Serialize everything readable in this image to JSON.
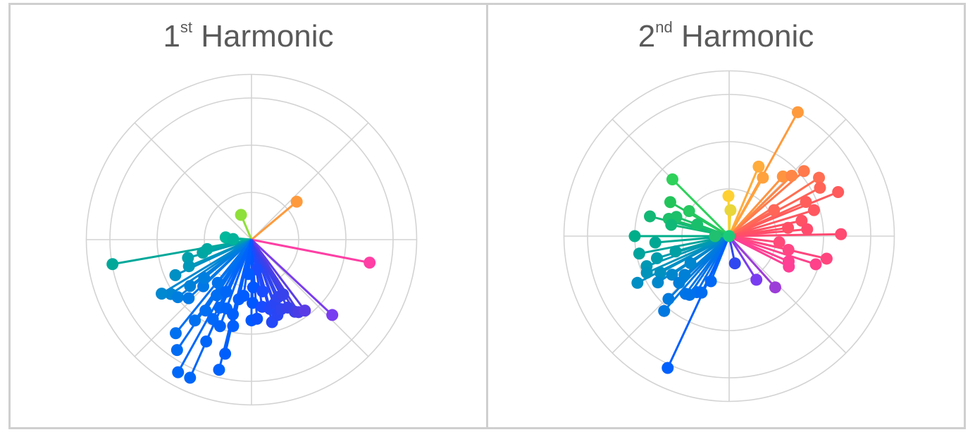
{
  "chart_data": [
    {
      "type": "polar-scatter",
      "title_main": "1",
      "title_sup": "st",
      "title_rest": " Harmonic",
      "grid": true,
      "rings": [
        1,
        2,
        3
      ],
      "spokes_deg": [
        0,
        45,
        90,
        135,
        180,
        225,
        270,
        315
      ],
      "points": [
        {
          "angle": 40,
          "r": 1.25,
          "color": "#ff9a3c"
        },
        {
          "angle": 113,
          "r": 0.57,
          "color": "#8fe03a"
        },
        {
          "angle": -11,
          "r": 2.55,
          "color": "#ff3fa4"
        },
        {
          "angle": 190,
          "r": 2.99,
          "color": "#00a89a"
        },
        {
          "angle": -43,
          "r": 2.34,
          "color": "#7a3cf0"
        },
        {
          "angle": 175,
          "r": 0.55,
          "color": "#00b89c"
        },
        {
          "angle": 178,
          "r": 0.39,
          "color": "#00b39a"
        },
        {
          "angle": 195,
          "r": 1.07,
          "color": "#00a6a4"
        },
        {
          "angle": 192,
          "r": 0.96,
          "color": "#00a8a2"
        },
        {
          "angle": 196,
          "r": 1.4,
          "color": "#00a0ac"
        },
        {
          "angle": 203,
          "r": 1.44,
          "color": "#0098b8"
        },
        {
          "angle": 205,
          "r": 1.78,
          "color": "#0090c4"
        },
        {
          "angle": 214,
          "r": 2.06,
          "color": "#0084d4"
        },
        {
          "angle": 217,
          "r": 1.63,
          "color": "#0080d8"
        },
        {
          "angle": 218,
          "r": 1.98,
          "color": "#007ee0"
        },
        {
          "angle": 211,
          "r": 2.22,
          "color": "#0088d0"
        },
        {
          "angle": 223,
          "r": 1.82,
          "color": "#0078e6"
        },
        {
          "angle": 224,
          "r": 1.42,
          "color": "#0078e6"
        },
        {
          "angle": 219,
          "r": 1.29,
          "color": "#007ee0"
        },
        {
          "angle": 231,
          "r": 2.55,
          "color": "#0070f0"
        },
        {
          "angle": 236,
          "r": 2.82,
          "color": "#006cf4"
        },
        {
          "angle": 241,
          "r": 3.21,
          "color": "#0068f8"
        },
        {
          "angle": 246,
          "r": 3.2,
          "color": "#0066f8"
        },
        {
          "angle": 235,
          "r": 2.09,
          "color": "#0070f0"
        },
        {
          "angle": 237,
          "r": 1.79,
          "color": "#006ef2"
        },
        {
          "angle": 244,
          "r": 1.87,
          "color": "#0068f8"
        },
        {
          "angle": 245,
          "r": 1.59,
          "color": "#0068f8"
        },
        {
          "angle": 238,
          "r": 1.39,
          "color": "#006ef2"
        },
        {
          "angle": 244,
          "r": 1.23,
          "color": "#0066f8"
        },
        {
          "angle": 232,
          "r": 1.16,
          "color": "#0072ee"
        },
        {
          "angle": 246,
          "r": 2.36,
          "color": "#0064fa"
        },
        {
          "angle": 256,
          "r": 2.84,
          "color": "#0062fc"
        },
        {
          "angle": 257,
          "r": 2.48,
          "color": "#005ffc"
        },
        {
          "angle": 250,
          "r": 1.95,
          "color": "#0064fa"
        },
        {
          "angle": 258,
          "r": 1.87,
          "color": "#0060fc"
        },
        {
          "angle": 250,
          "r": 1.55,
          "color": "#0064fa"
        },
        {
          "angle": 256,
          "r": 1.63,
          "color": "#0060fc"
        },
        {
          "angle": 258,
          "r": 1.29,
          "color": "#005ffc"
        },
        {
          "angle": 262,
          "r": 1.2,
          "color": "#005cfe"
        },
        {
          "angle": 270,
          "r": 1.71,
          "color": "#0058ff"
        },
        {
          "angle": 274,
          "r": 1.68,
          "color": "#0a52ff"
        },
        {
          "angle": 271,
          "r": 1.34,
          "color": "#0056ff"
        },
        {
          "angle": 272,
          "r": 1.01,
          "color": "#0056ff"
        },
        {
          "angle": 279,
          "r": 1.44,
          "color": "#1a4cff"
        },
        {
          "angle": 282,
          "r": 1.12,
          "color": "#1a4cff"
        },
        {
          "angle": 284,
          "r": 1.8,
          "color": "#2448f8"
        },
        {
          "angle": 285,
          "r": 1.52,
          "color": "#2448f8"
        },
        {
          "angle": 289,
          "r": 1.69,
          "color": "#2a46f4"
        },
        {
          "angle": 290,
          "r": 1.44,
          "color": "#2a46f4"
        },
        {
          "angle": 293,
          "r": 1.6,
          "color": "#3044f0"
        },
        {
          "angle": 295,
          "r": 1.34,
          "color": "#3044f0"
        },
        {
          "angle": 300,
          "r": 1.34,
          "color": "#3842ec"
        },
        {
          "angle": 298,
          "r": 1.63,
          "color": "#3842ec"
        },
        {
          "angle": 301,
          "r": 1.78,
          "color": "#4040e8"
        },
        {
          "angle": 303,
          "r": 1.83,
          "color": "#4a3ee6"
        },
        {
          "angle": 307,
          "r": 1.88,
          "color": "#5a3ce6"
        },
        {
          "angle": 280,
          "r": 0.64,
          "color": "#1a4cff"
        },
        {
          "angle": 265,
          "r": 0.73,
          "color": "#005cfe"
        }
      ]
    },
    {
      "type": "polar-scatter",
      "title_main": "2",
      "title_sup": "nd",
      "title_rest": " Harmonic",
      "grid": true,
      "rings": [
        1,
        2,
        3
      ],
      "spokes_deg": [
        0,
        45,
        90,
        135,
        180,
        225,
        270,
        315
      ],
      "points": [
        {
          "angle": 61,
          "r": 3.0,
          "color": "#ff9a3c"
        },
        {
          "angle": 91,
          "r": 0.85,
          "color": "#ffd032"
        },
        {
          "angle": 87,
          "r": 0.55,
          "color": "#e8d63a"
        },
        {
          "angle": 67,
          "r": 1.6,
          "color": "#ffac3c"
        },
        {
          "angle": 60,
          "r": 1.43,
          "color": "#ffa23c"
        },
        {
          "angle": 48,
          "r": 1.7,
          "color": "#ff9440"
        },
        {
          "angle": 44,
          "r": 1.84,
          "color": "#ff8646"
        },
        {
          "angle": 41,
          "r": 2.1,
          "color": "#ff7a4c"
        },
        {
          "angle": 33,
          "r": 2.27,
          "color": "#ff6e52"
        },
        {
          "angle": 28,
          "r": 2.18,
          "color": "#ff6456"
        },
        {
          "angle": 22,
          "r": 2.49,
          "color": "#ff5a5c"
        },
        {
          "angle": 24,
          "r": 1.78,
          "color": "#ff5e5a"
        },
        {
          "angle": 17,
          "r": 1.88,
          "color": "#ff5860"
        },
        {
          "angle": 12,
          "r": 1.57,
          "color": "#ff5264"
        },
        {
          "angle": 5,
          "r": 1.66,
          "color": "#ff4c6c"
        },
        {
          "angle": 1,
          "r": 2.37,
          "color": "#ff4a72"
        },
        {
          "angle": -13,
          "r": 2.12,
          "color": "#ff467e"
        },
        {
          "angle": -18,
          "r": 1.93,
          "color": "#ff428a"
        },
        {
          "angle": -23,
          "r": 1.37,
          "color": "#ff4090"
        },
        {
          "angle": -7,
          "r": 1.07,
          "color": "#ff4a7a"
        },
        {
          "angle": 8,
          "r": 1.26,
          "color": "#ff5066"
        },
        {
          "angle": 30,
          "r": 1.1,
          "color": "#ff6658"
        },
        {
          "angle": -13,
          "r": 1.29,
          "color": "#ff4684"
        },
        {
          "angle": -27,
          "r": 1.42,
          "color": "#ff3e96"
        },
        {
          "angle": -48,
          "r": 1.46,
          "color": "#9c3cd8"
        },
        {
          "angle": -58,
          "r": 1.09,
          "color": "#7a3cf0"
        },
        {
          "angle": -78,
          "r": 0.59,
          "color": "#3048f0"
        },
        {
          "angle": 150,
          "r": 1.44,
          "color": "#22c45a"
        },
        {
          "angle": 135,
          "r": 1.7,
          "color": "#2ed15a"
        },
        {
          "angle": 148,
          "r": 1.0,
          "color": "#26c860"
        },
        {
          "angle": 164,
          "r": 1.33,
          "color": "#1cc068"
        },
        {
          "angle": 160,
          "r": 1.19,
          "color": "#1cbf6a"
        },
        {
          "angle": 166,
          "r": 1.73,
          "color": "#12b876"
        },
        {
          "angle": 180,
          "r": 2.0,
          "color": "#00ae8a"
        },
        {
          "angle": 169,
          "r": 1.25,
          "color": "#10b878"
        },
        {
          "angle": 160,
          "r": 0.72,
          "color": "#1abf6c"
        },
        {
          "angle": 185,
          "r": 1.57,
          "color": "#00a894"
        },
        {
          "angle": 191,
          "r": 1.94,
          "color": "#00a49c"
        },
        {
          "angle": 196,
          "r": 1.18,
          "color": "#00a0a4"
        },
        {
          "angle": 197,
          "r": 1.6,
          "color": "#009cac"
        },
        {
          "angle": 200,
          "r": 1.86,
          "color": "#0098b4"
        },
        {
          "angle": 204,
          "r": 1.91,
          "color": "#0094ba"
        },
        {
          "angle": 208,
          "r": 1.65,
          "color": "#0090c0"
        },
        {
          "angle": 207,
          "r": 2.18,
          "color": "#008ec4"
        },
        {
          "angle": 213,
          "r": 1.8,
          "color": "#0088cc"
        },
        {
          "angle": 214,
          "r": 1.46,
          "color": "#0086cc"
        },
        {
          "angle": 215,
          "r": 1.0,
          "color": "#0086ce"
        },
        {
          "angle": 221,
          "r": 1.25,
          "color": "#0080d6"
        },
        {
          "angle": 223,
          "r": 1.45,
          "color": "#007ed8"
        },
        {
          "angle": 226,
          "r": 1.85,
          "color": "#007ade"
        },
        {
          "angle": 229,
          "r": 2.1,
          "color": "#0078e0"
        },
        {
          "angle": 233,
          "r": 1.53,
          "color": "#0074e6"
        },
        {
          "angle": 236,
          "r": 1.5,
          "color": "#0072e8"
        },
        {
          "angle": 240,
          "r": 1.37,
          "color": "#0070ec"
        },
        {
          "angle": 244,
          "r": 1.33,
          "color": "#006cf0"
        },
        {
          "angle": 248,
          "r": 1.03,
          "color": "#0068f4"
        },
        {
          "angle": 245,
          "r": 3.08,
          "color": "#0060fc"
        },
        {
          "angle": 180,
          "r": 0.3,
          "color": "#20c070"
        },
        {
          "angle": 0,
          "r": 0.0,
          "color": "#1acc7a"
        }
      ]
    }
  ]
}
